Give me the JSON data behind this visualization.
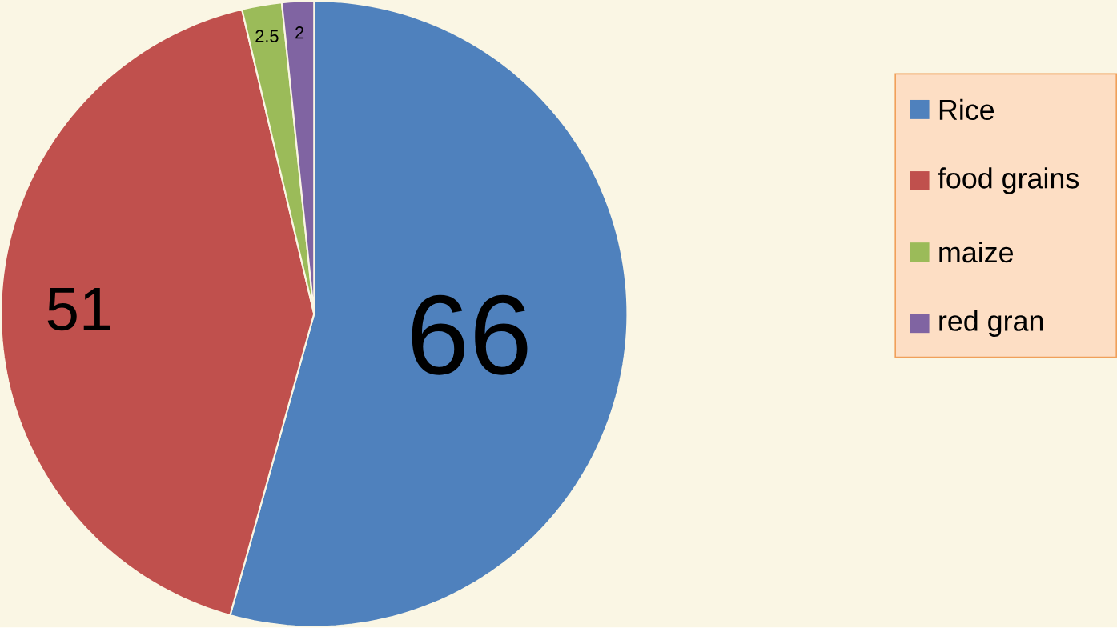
{
  "chart_data": {
    "type": "pie",
    "categories": [
      "Rice",
      "food grains",
      "maize",
      "red gran"
    ],
    "values": [
      66,
      51,
      2.5,
      2
    ],
    "colors": [
      "#4f81bd",
      "#c0504d",
      "#9bbb59",
      "#8064a2"
    ],
    "data_labels": true,
    "legend": "right"
  }
}
